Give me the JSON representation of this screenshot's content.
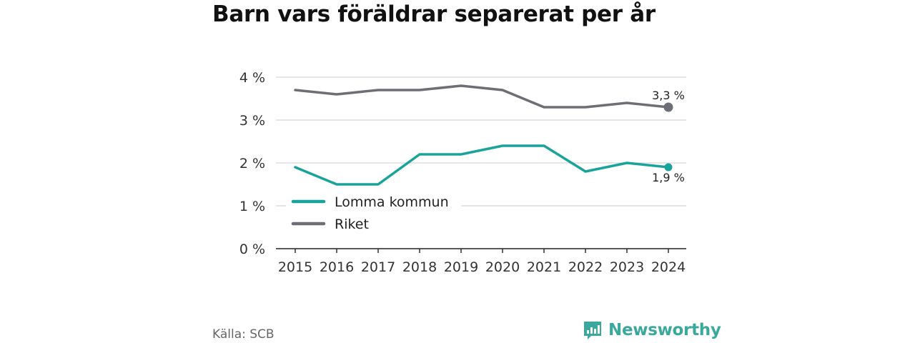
{
  "title": "Barn vars föräldrar separerat per år",
  "source": "Källa: SCB",
  "brand": "Newsworthy",
  "colors": {
    "lomma": "#1aa39a",
    "riket": "#6e6e76",
    "grid": "#dddddd",
    "brand": "#3aa89c"
  },
  "chart_data": {
    "type": "line",
    "title": "Barn vars föräldrar separerat per år",
    "xlabel": "",
    "ylabel": "",
    "x": [
      "2015",
      "2016",
      "2017",
      "2018",
      "2019",
      "2020",
      "2021",
      "2022",
      "2023",
      "2024"
    ],
    "ylim": [
      0,
      4
    ],
    "yticks": [
      0,
      1,
      2,
      3,
      4
    ],
    "ytick_labels": [
      "0 %",
      "1 %",
      "2 %",
      "3 %",
      "4 %"
    ],
    "grid": true,
    "legend_position": "bottom-left",
    "series": [
      {
        "name": "Lomma kommun",
        "color": "#1aa39a",
        "values": [
          1.9,
          1.5,
          1.5,
          2.2,
          2.2,
          2.4,
          2.4,
          1.8,
          2.0,
          1.9
        ],
        "end_label": "1,9 %"
      },
      {
        "name": "Riket",
        "color": "#6e6e76",
        "values": [
          3.7,
          3.6,
          3.7,
          3.7,
          3.8,
          3.7,
          3.3,
          3.3,
          3.4,
          3.3
        ],
        "end_label": "3,3 %"
      }
    ]
  }
}
